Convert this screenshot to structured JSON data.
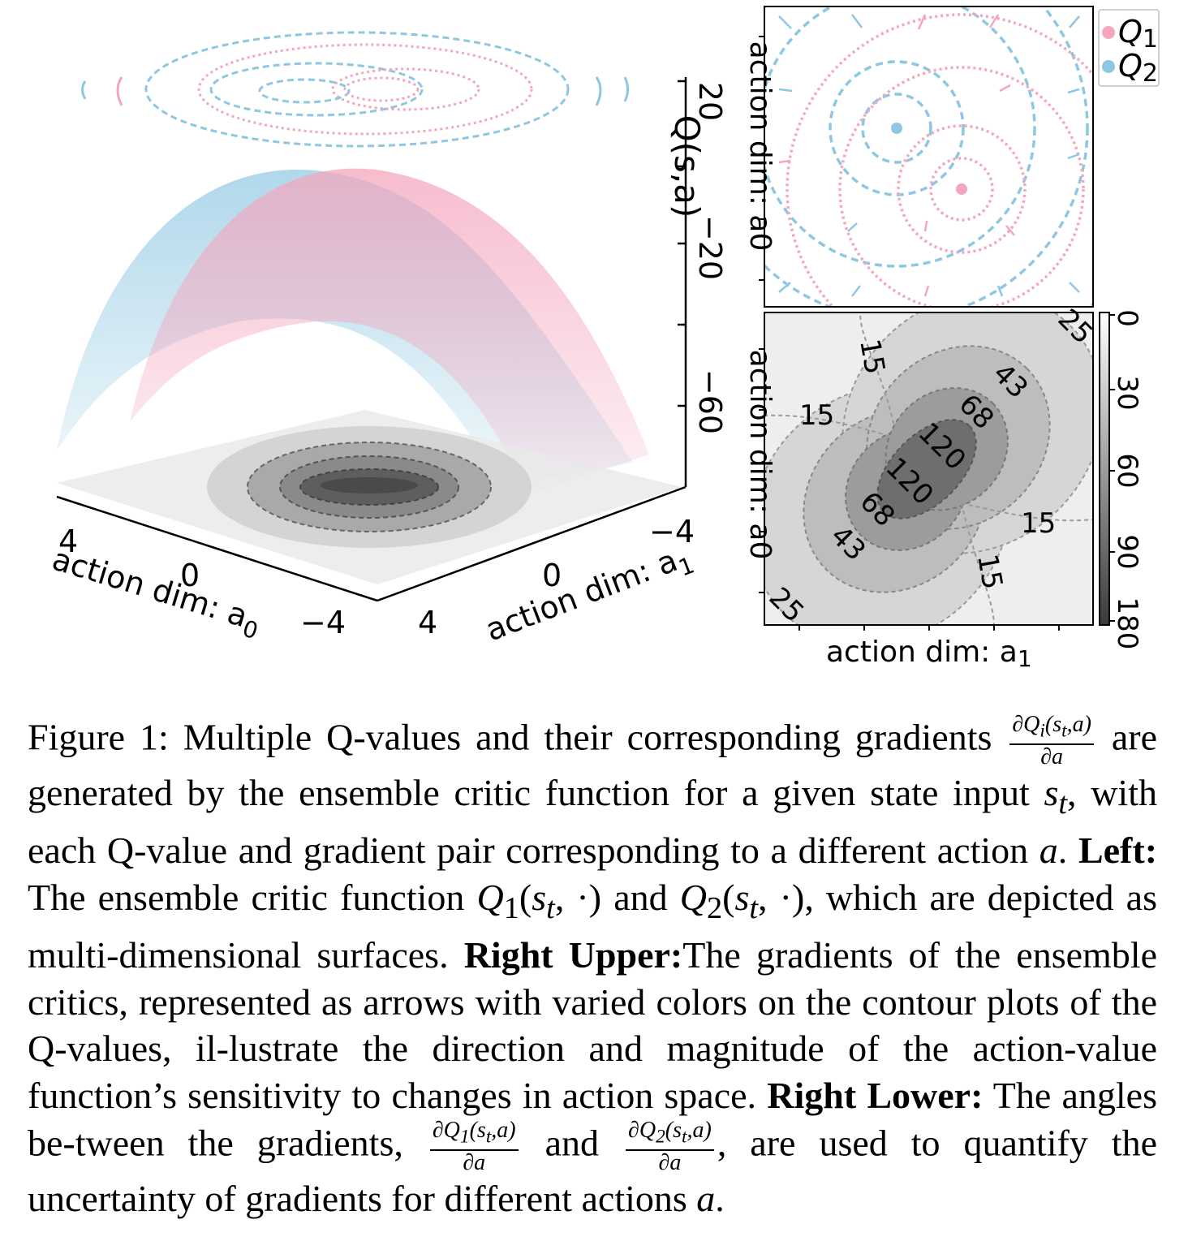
{
  "figure": {
    "colors": {
      "q1": "#f4a6bd",
      "q2": "#8ec7e2",
      "grid_gray": "#9a9a9a"
    },
    "left_3d": {
      "zlabel": "Q(s,a)",
      "z_ticks": [
        "20",
        "−20",
        "−60"
      ],
      "x_axis_label": "action dim: a",
      "x_axis_sub": "0",
      "x_ticks": [
        "4",
        "0",
        "−4"
      ],
      "y_axis_label": "action dim: a",
      "y_axis_sub": "1",
      "y_ticks": [
        "4",
        "0",
        "−4"
      ]
    },
    "right_upper": {
      "ylabel": "action dim: a0",
      "legend": [
        {
          "label": "Q",
          "sub": "1",
          "color": "#f4a6bd"
        },
        {
          "label": "Q",
          "sub": "2",
          "color": "#8ec7e2"
        }
      ]
    },
    "right_lower": {
      "ylabel": "action dim: a0",
      "xlabel": "action dim: a",
      "xlabel_sub": "1",
      "contour_labels": [
        "25",
        "15",
        "43",
        "15",
        "68",
        "120",
        "120",
        "68",
        "15",
        "43",
        "15",
        "25"
      ],
      "colorbar_ticks": [
        "0",
        "30",
        "60",
        "90",
        "180"
      ]
    }
  },
  "caption": {
    "line1": "Figure 1:  Multiple Q-values and their corresponding gradients",
    "frac_main_num": "∂Q",
    "frac_main_sub": "i",
    "frac_main_arg": "(s",
    "frac_main_arg_sub": "t",
    "frac_main_arg_end": ",a)",
    "frac_den": "∂a",
    "line2_rest": " are generated by the ensemble critic function for a given state input ",
    "s_t": "s",
    "s_t_sub": "t",
    "seg3": ", with each Q-value and gradient pair corresponding to a different action ",
    "a": "a",
    "seg4": ".  ",
    "left_bold": "Left:",
    "seg5": " The ensemble critic function ",
    "q1_fn": "Q",
    "q1_sub": "1",
    "q1_args": "(s",
    "q1_args_sub": "t",
    "q1_args_end": ", ·)",
    "seg6": " and ",
    "q2_fn": "Q",
    "q2_sub": "2",
    "q2_args": "(s",
    "q2_args_sub": "t",
    "q2_args_end": ", ·)",
    "seg7": ", which are depicted as multi-dimensional surfaces.",
    "right_upper_bold": "Right Upper:",
    "seg8": "The gradients of the ensemble critics, represented as arrows with varied colors on the contour plots of the Q-values, il-lustrate the direction and magnitude of the action-value function’s sensitivity to changes in action space. ",
    "right_lower_bold": "Right Lower:",
    "seg9": " The angles be-tween the gradients, ",
    "frac1_num": "∂Q",
    "frac1_sub": "1",
    "frac1_arg": "(s",
    "frac1_arg_sub": "t",
    "frac1_arg_end": ",a)",
    "frac2_num": "∂Q",
    "frac2_sub": "2",
    "frac2_arg": "(s",
    "frac2_arg_sub": "t",
    "frac2_arg_end": ",a)",
    "seg10": " and ",
    "seg11": ", are used to quantify the uncertainty of gradients for different actions ",
    "seg12": "."
  }
}
